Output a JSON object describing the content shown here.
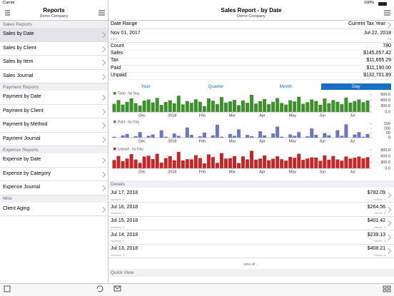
{
  "status_bar": {
    "carrier": "Carrier",
    "battery": "100%"
  },
  "sidebar": {
    "title": "Reports",
    "subtitle": "Demo Company",
    "selected": "Sales by Date",
    "sections": [
      {
        "header": "Sales Reports",
        "items": [
          "Sales by Date",
          "Sales by Client",
          "Sales by Item",
          "Sales Journal"
        ]
      },
      {
        "header": "Payment Reports",
        "items": [
          "Payment by Date",
          "Payment by Client",
          "Payment by Method",
          "Payment Journal"
        ]
      },
      {
        "header": "Expense Reports",
        "items": [
          "Expense by Date",
          "Expense by Category",
          "Expense Journal"
        ]
      },
      {
        "header": "Misc",
        "items": [
          "Client Aging"
        ]
      }
    ]
  },
  "header": {
    "title": "Sales Report - by Date",
    "subtitle": "Demo Company"
  },
  "summary": {
    "date_range_label": "Date Range",
    "date_range_value": "Current Tax Year",
    "start_date": "Nov 01, 2017",
    "start_caption": "from",
    "end_date": "Jul 22, 2018",
    "end_caption": "to",
    "rows": [
      {
        "label": "Count",
        "value": "780"
      },
      {
        "label": "Sales",
        "value": "$145,057.42"
      },
      {
        "label": "Tax",
        "value": "$11,655.29"
      },
      {
        "label": "Paid",
        "value": "$11,190.00"
      },
      {
        "label": "Unpaid",
        "value": "$132,701.89"
      }
    ]
  },
  "tabs": [
    "Year",
    "Quarter",
    "Month",
    "Day"
  ],
  "selected_tab": "Day",
  "chart_data": [
    {
      "type": "bar",
      "title": "Total - by Day",
      "color": "#3f8f2f",
      "values": [
        420,
        610,
        380,
        520,
        700,
        450,
        330,
        580,
        640,
        490,
        720,
        360,
        510,
        600,
        440,
        830,
        390,
        560,
        470,
        650,
        520,
        300,
        690,
        580,
        410,
        760,
        480,
        540,
        620,
        350,
        590,
        470,
        880,
        430,
        550,
        660,
        400,
        520,
        710,
        460,
        380,
        600,
        540,
        780,
        420,
        500,
        640,
        560,
        370,
        690,
        450,
        610,
        520,
        400,
        730,
        480,
        560,
        640,
        500,
        590
      ],
      "ylim": [
        0,
        950
      ],
      "yticks": [
        {
          "value": 900,
          "label": "900.0"
        },
        {
          "value": 600,
          "label": "600.0"
        },
        {
          "value": 300,
          "label": "300.0"
        },
        {
          "value": 0,
          "label": "0.0"
        }
      ],
      "xlim": [
        0,
        60
      ],
      "xticks": [
        {
          "value": 7,
          "label": "Dec"
        },
        {
          "value": 14,
          "label": "2018"
        },
        {
          "value": 21,
          "label": "Feb"
        },
        {
          "value": 28,
          "label": "Mar"
        },
        {
          "value": 35,
          "label": "Apr"
        },
        {
          "value": 42,
          "label": "May"
        },
        {
          "value": 49,
          "label": "Jun"
        },
        {
          "value": 56,
          "label": "Jul"
        }
      ]
    },
    {
      "type": "bar",
      "title": "Paid - by Day",
      "color": "#6f76c0",
      "values": [
        10,
        0,
        25,
        40,
        0,
        15,
        60,
        0,
        20,
        35,
        0,
        80,
        10,
        0,
        45,
        20,
        0,
        110,
        30,
        0,
        15,
        55,
        0,
        25,
        140,
        10,
        0,
        40,
        20,
        90,
        0,
        30,
        15,
        0,
        70,
        25,
        0,
        45,
        120,
        10,
        0,
        35,
        20,
        60,
        0,
        15,
        100,
        30,
        0,
        50,
        25,
        0,
        80,
        20,
        145,
        0,
        35,
        60,
        10,
        40
      ],
      "ylim": [
        0,
        170
      ],
      "yticks": [
        150,
        100,
        50,
        0
      ],
      "xlim": [
        0,
        60
      ],
      "xticks": [
        {
          "value": 7,
          "label": "Dec"
        },
        {
          "value": 14,
          "label": "2018"
        },
        {
          "value": 21,
          "label": "Feb"
        },
        {
          "value": 28,
          "label": "Mar"
        },
        {
          "value": 35,
          "label": "Apr"
        },
        {
          "value": 42,
          "label": "May"
        },
        {
          "value": 49,
          "label": "Jun"
        },
        {
          "value": 56,
          "label": "Jul"
        }
      ]
    },
    {
      "type": "bar",
      "title": "Unpaid - by Day",
      "color": "#c0282a",
      "values": [
        410,
        610,
        355,
        480,
        700,
        435,
        270,
        580,
        620,
        455,
        720,
        280,
        500,
        600,
        395,
        810,
        390,
        450,
        440,
        650,
        505,
        245,
        690,
        555,
        270,
        750,
        480,
        500,
        600,
        260,
        590,
        440,
        865,
        430,
        480,
        635,
        400,
        475,
        590,
        450,
        380,
        565,
        520,
        720,
        420,
        485,
        540,
        530,
        370,
        640,
        425,
        610,
        440,
        380,
        585,
        480,
        525,
        580,
        490,
        550
      ],
      "ylim": [
        0,
        950
      ],
      "yticks": [
        {
          "value": 900,
          "label": "900.0"
        },
        {
          "value": 600,
          "label": "600.0"
        },
        {
          "value": 300,
          "label": "300.0"
        },
        {
          "value": 0,
          "label": "0.0"
        }
      ],
      "xlim": [
        0,
        60
      ],
      "xticks": [
        {
          "value": 7,
          "label": "Dec"
        },
        {
          "value": 14,
          "label": "2018"
        },
        {
          "value": 21,
          "label": "Feb"
        },
        {
          "value": 28,
          "label": "Mar"
        },
        {
          "value": 35,
          "label": "Apr"
        },
        {
          "value": 42,
          "label": "May"
        },
        {
          "value": 49,
          "label": "Jun"
        },
        {
          "value": 56,
          "label": "Jul"
        }
      ]
    }
  ],
  "details": {
    "header": "Details",
    "rows": [
      {
        "date": "Jul 17, 2018",
        "amount": "$782.09",
        "invoices": "invoices: 3",
        "clients": "clients: 3"
      },
      {
        "date": "Jul 16, 2018",
        "amount": "$264.56",
        "invoices": "invoices: 3",
        "clients": "clients: 3"
      },
      {
        "date": "Jul 15, 2018",
        "amount": "$401.42",
        "invoices": "invoices: 3",
        "clients": "clients: 3"
      },
      {
        "date": "Jul 14, 2018",
        "amount": "$239.13",
        "invoices": "invoices: 3",
        "clients": "clients: 3"
      },
      {
        "date": "Jul 13, 2018",
        "amount": "$408.21",
        "invoices": "invoices: 3",
        "clients": "clients: 3"
      }
    ],
    "view_all": "view all ..."
  },
  "quick_view": "Quick View"
}
